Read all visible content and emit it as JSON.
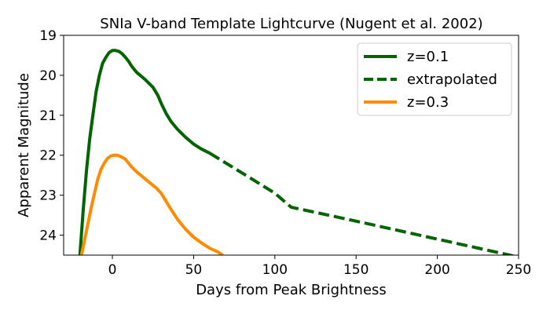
{
  "chart_data": {
    "type": "line",
    "title": "SNIa V-band Template Lightcurve (Nugent et al. 2002)",
    "xlabel": "Days from Peak Brightness",
    "ylabel": "Apparent Magnitude",
    "xlim": [
      -30,
      250
    ],
    "ylim": [
      24.5,
      19
    ],
    "y_inverted": true,
    "grid": false,
    "legend_position": "top-right",
    "xticks": [
      0,
      50,
      100,
      150,
      200,
      250
    ],
    "xtick_labels": [
      "0",
      "50",
      "100",
      "150",
      "200",
      "250"
    ],
    "yticks": [
      19,
      20,
      21,
      22,
      23,
      24
    ],
    "ytick_labels": [
      "19",
      "20",
      "21",
      "22",
      "23",
      "24"
    ],
    "series": [
      {
        "name": "z=0.1",
        "color": "#006400",
        "style": "solid",
        "x": [
          -20,
          -18,
          -16,
          -14,
          -12,
          -10,
          -8,
          -6,
          -4,
          -2,
          0,
          2,
          4,
          6,
          8,
          10,
          12,
          15,
          20,
          25,
          28,
          30,
          33,
          36,
          40,
          45,
          50,
          55,
          60
        ],
        "y": [
          24.5,
          23.4,
          22.4,
          21.6,
          21.0,
          20.4,
          20.0,
          19.7,
          19.55,
          19.43,
          19.38,
          19.38,
          19.4,
          19.46,
          19.55,
          19.65,
          19.78,
          19.93,
          20.1,
          20.3,
          20.5,
          20.7,
          20.95,
          21.15,
          21.35,
          21.55,
          21.72,
          21.85,
          21.95
        ]
      },
      {
        "name": "extrapolated",
        "color": "#006400",
        "style": "dashed",
        "x": [
          60,
          80,
          100,
          110,
          150,
          200,
          250
        ],
        "y": [
          21.95,
          22.45,
          22.95,
          23.3,
          23.65,
          24.1,
          24.55
        ]
      },
      {
        "name": "z=0.3",
        "color": "#ff8c00",
        "style": "solid",
        "x": [
          -19,
          -17,
          -15,
          -13,
          -11,
          -9,
          -7,
          -5,
          -3,
          -1,
          1,
          3,
          5,
          8,
          10,
          12,
          15,
          18,
          21,
          24,
          27,
          30,
          33,
          36,
          40,
          45,
          50,
          55,
          60,
          65,
          68
        ],
        "y": [
          24.5,
          24.1,
          23.7,
          23.3,
          22.95,
          22.6,
          22.35,
          22.2,
          22.08,
          22.02,
          22.0,
          22.0,
          22.03,
          22.1,
          22.2,
          22.3,
          22.42,
          22.52,
          22.62,
          22.72,
          22.82,
          22.95,
          23.15,
          23.35,
          23.6,
          23.85,
          24.05,
          24.2,
          24.33,
          24.42,
          24.5
        ]
      }
    ]
  }
}
